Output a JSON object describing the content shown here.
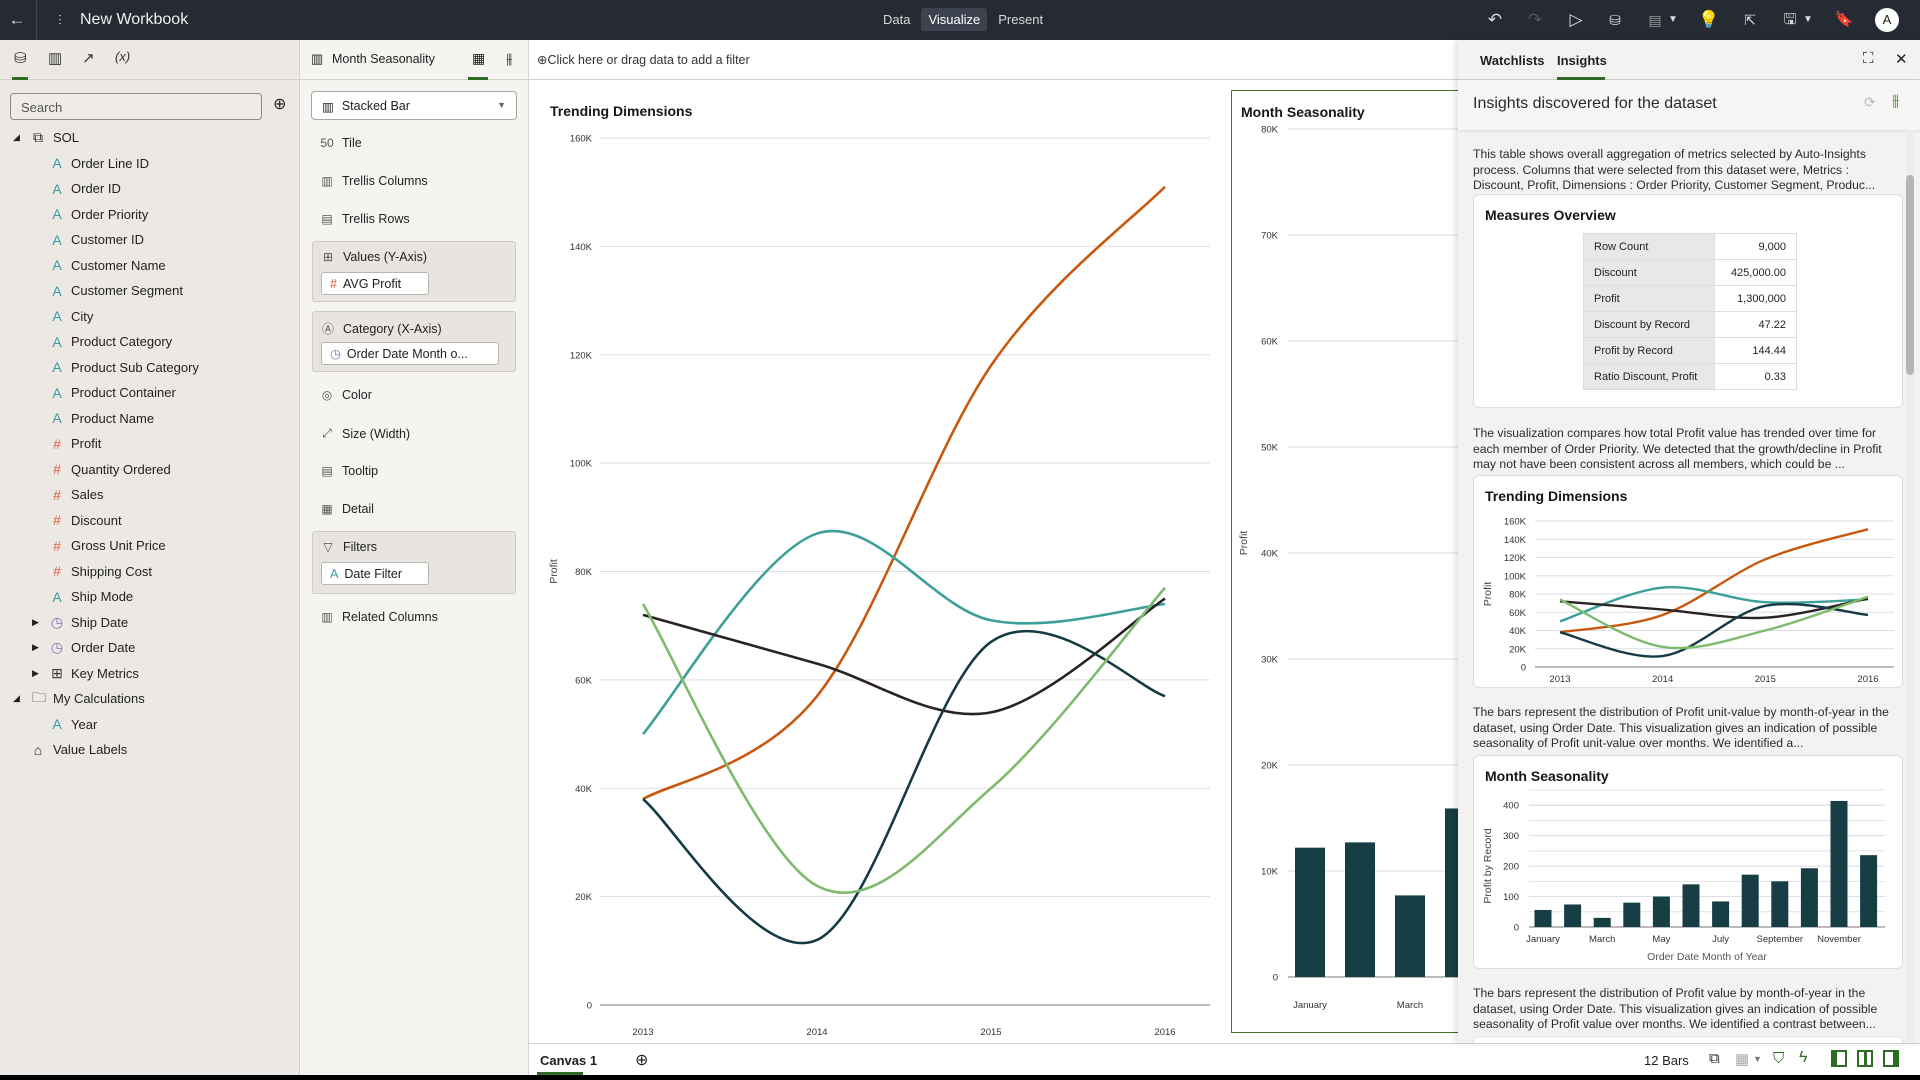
{
  "app": {
    "title": "New Workbook",
    "modes": [
      "Data",
      "Visualize",
      "Present"
    ],
    "active_mode": "Visualize",
    "avatar": "A"
  },
  "data_panel": {
    "search_placeholder": "Search",
    "dataset": "SOL",
    "fields": [
      {
        "label": "Order Line ID",
        "type": "attr"
      },
      {
        "label": "Order ID",
        "type": "attr"
      },
      {
        "label": "Order Priority",
        "type": "attr"
      },
      {
        "label": "Customer ID",
        "type": "attr"
      },
      {
        "label": "Customer Name",
        "type": "attr"
      },
      {
        "label": "Customer Segment",
        "type": "attr"
      },
      {
        "label": "City",
        "type": "attr"
      },
      {
        "label": "Product Category",
        "type": "attr"
      },
      {
        "label": "Product Sub Category",
        "type": "attr"
      },
      {
        "label": "Product Container",
        "type": "attr"
      },
      {
        "label": "Product Name",
        "type": "attr"
      },
      {
        "label": "Profit",
        "type": "measure"
      },
      {
        "label": "Quantity Ordered",
        "type": "measure"
      },
      {
        "label": "Sales",
        "type": "measure"
      },
      {
        "label": "Discount",
        "type": "measure"
      },
      {
        "label": "Gross Unit Price",
        "type": "measure"
      },
      {
        "label": "Shipping Cost",
        "type": "measure"
      },
      {
        "label": "Ship Mode",
        "type": "attr"
      },
      {
        "label": "Ship Date",
        "type": "date"
      },
      {
        "label": "Order Date",
        "type": "date"
      },
      {
        "label": "Key Metrics",
        "type": "folder"
      }
    ],
    "my_calculations": "My Calculations",
    "calc_fields": [
      "Year"
    ],
    "value_labels": "Value Labels"
  },
  "grammar": {
    "viz_name": "Month Seasonality",
    "viz_type": "Stacked Bar",
    "tile": "Tile",
    "trellis_columns": "Trellis Columns",
    "trellis_rows": "Trellis Rows",
    "values_label": "Values (Y-Axis)",
    "values_pill": "AVG Profit",
    "category_label": "Category (X-Axis)",
    "category_pill": "Order Date Month o...",
    "color": "Color",
    "size": "Size (Width)",
    "tooltip": "Tooltip",
    "detail": "Detail",
    "filters_label": "Filters",
    "filters_pill": "Date Filter",
    "related": "Related Columns"
  },
  "filter_bar": {
    "placeholder": "Click here or drag data to add a filter"
  },
  "canvas": {
    "tab": "Canvas 1",
    "status": "12 Bars"
  },
  "insights": {
    "tabs": [
      "Watchlists",
      "Insights"
    ],
    "active_tab": "Insights",
    "header": "Insights discovered for the dataset",
    "paragraphs": [
      "This table shows overall aggregation of metrics selected by Auto-Insights process. Columns that were selected from this dataset were, Metrics : Discount, Profit, Dimensions : Order Priority, Customer Segment, Produc...",
      "The visualization compares how total Profit value has trended over time for each member of Order Priority. We detected that the growth/decline in Profit may not have been consistent across all members, which could be ...",
      "The bars represent the distribution of Profit unit-value by month-of-year in the dataset, using Order Date. This visualization gives an indication of possible seasonality of Profit unit-value over months. We identified a...",
      "The bars represent the distribution of Profit value by month-of-year in the dataset, using Order Date. This visualization gives an indication of possible seasonality of Profit value over months. We identified a contrast between..."
    ],
    "measures_title": "Measures Overview",
    "measures": [
      {
        "k": "Row Count",
        "v": "9,000"
      },
      {
        "k": "Discount",
        "v": "425,000.00"
      },
      {
        "k": "Profit",
        "v": "1,300,000"
      },
      {
        "k": "Discount by Record",
        "v": "47.22"
      },
      {
        "k": "Profit by Record",
        "v": "144.44"
      },
      {
        "k": "Ratio Discount, Profit",
        "v": "0.33"
      }
    ]
  },
  "colors": {
    "accent": "#4a6e2a",
    "bar": "#173e45"
  },
  "chart_data": [
    {
      "id": "trending-main",
      "type": "line",
      "title": "Trending Dimensions",
      "xlabel": "",
      "ylabel": "Profit",
      "x": [
        "2013",
        "2014",
        "2015",
        "2016"
      ],
      "ylim": [
        0,
        160000
      ],
      "yticks": [
        "0",
        "20K",
        "40K",
        "60K",
        "80K",
        "100K",
        "120K",
        "140K",
        "160K"
      ],
      "series": [
        {
          "name": "series-orange",
          "color": "#c8580f",
          "values": [
            38000,
            57000,
            118000,
            151000
          ]
        },
        {
          "name": "series-teal",
          "color": "#3d9f98",
          "values": [
            50000,
            87000,
            71000,
            74000
          ]
        },
        {
          "name": "series-black",
          "color": "#2a2223",
          "values": [
            72000,
            63000,
            54000,
            75000
          ]
        },
        {
          "name": "series-darkteal",
          "color": "#143b44",
          "values": [
            38000,
            12000,
            67000,
            57000
          ]
        },
        {
          "name": "series-lightgreen",
          "color": "#7dba6b",
          "values": [
            74000,
            22000,
            40000,
            77000
          ]
        }
      ]
    },
    {
      "id": "month-main",
      "type": "bar",
      "title": "Month Seasonality",
      "ylabel": "Profit",
      "ylim": [
        0,
        80000
      ],
      "yticks": [
        "0",
        "10K",
        "20K",
        "30K",
        "40K",
        "50K",
        "60K",
        "70K",
        "80K"
      ],
      "categories": [
        "January",
        "",
        "March",
        ""
      ],
      "values": [
        12200,
        12700,
        7700,
        15900
      ]
    },
    {
      "id": "trending-mini",
      "type": "line",
      "title": "Trending Dimensions",
      "ylabel": "Profit",
      "x": [
        "2013",
        "2014",
        "2015",
        "2016"
      ],
      "ylim": [
        0,
        160000
      ],
      "yticks": [
        "0",
        "20K",
        "40K",
        "60K",
        "80K",
        "100K",
        "120K",
        "140K",
        "160K"
      ]
    },
    {
      "id": "month-mini",
      "type": "bar",
      "title": "Month Seasonality",
      "xlabel": "Order Date Month of Year",
      "ylabel": "Profit by Record",
      "ylim": [
        0,
        450
      ],
      "yticks": [
        "0",
        "100",
        "200",
        "300",
        "400"
      ],
      "categories": [
        "January",
        "",
        "March",
        "",
        "May",
        "",
        "July",
        "",
        "September",
        "",
        "November",
        ""
      ],
      "values": [
        56,
        74,
        30,
        80,
        100,
        140,
        84,
        172,
        150,
        193,
        414,
        236
      ]
    }
  ]
}
